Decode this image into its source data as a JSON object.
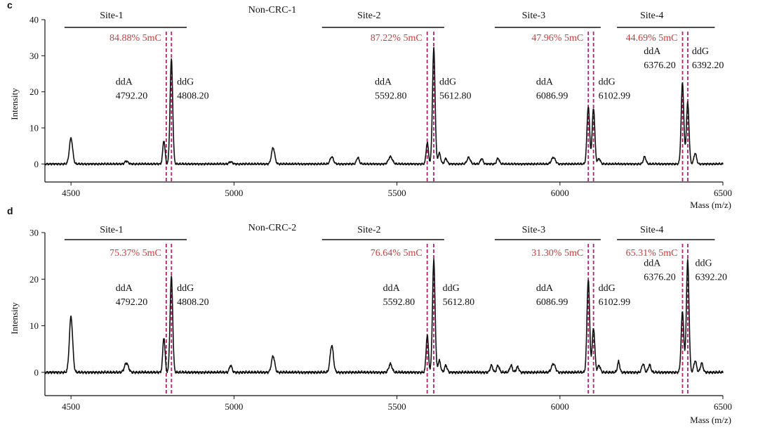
{
  "chart_data": [
    {
      "panel": "c",
      "type": "line",
      "title": "Non-CRC-1",
      "xlabel": "Mass (m/z)",
      "ylabel": "Intensity",
      "xlim": [
        4420,
        6500
      ],
      "ylim": [
        -5,
        40
      ],
      "xticks": [
        4500,
        5000,
        5500,
        6000,
        6500
      ],
      "yticks": [
        0,
        10,
        20,
        30,
        40
      ],
      "line_color": "#111111",
      "baseline": 0,
      "peaks": [
        [
          4500,
          7.2,
          5
        ],
        [
          4670,
          0.8,
          5
        ],
        [
          4785,
          6.5,
          3.5
        ],
        [
          4808,
          29,
          4
        ],
        [
          4990,
          0.6,
          5
        ],
        [
          5120,
          4.5,
          5
        ],
        [
          5300,
          2,
          5
        ],
        [
          5380,
          1.8,
          4
        ],
        [
          5480,
          2,
          6
        ],
        [
          5593,
          6,
          3.5
        ],
        [
          5613,
          32,
          4
        ],
        [
          5630,
          3,
          4
        ],
        [
          5650,
          1.5,
          4
        ],
        [
          5720,
          1.8,
          5
        ],
        [
          5760,
          1.5,
          4
        ],
        [
          5810,
          1.6,
          4
        ],
        [
          5980,
          1.8,
          6
        ],
        [
          6087,
          16,
          4
        ],
        [
          6103,
          15.5,
          4
        ],
        [
          6120,
          1.5,
          4
        ],
        [
          6260,
          2,
          4
        ],
        [
          6376,
          22.5,
          4
        ],
        [
          6392,
          17,
          4
        ],
        [
          6415,
          3,
          4
        ]
      ],
      "sites": [
        {
          "name": "Site-1",
          "from": 4480,
          "to": 4855,
          "pct": "84.88% 5mC"
        },
        {
          "name": "Site-2",
          "from": 5270,
          "to": 5645,
          "pct": "87.22% 5mC"
        },
        {
          "name": "Site-3",
          "from": 5800,
          "to": 6125,
          "pct": "47.96% 5mC"
        },
        {
          "name": "Site-4",
          "from": 6175,
          "to": 6475,
          "pct": "44.69% 5mC"
        }
      ],
      "dashed_lines": [
        4792.2,
        4808.2,
        5592.8,
        5612.8,
        6086.99,
        6102.99,
        6376.2,
        6392.2
      ],
      "dashed_color": "#c2187a",
      "pct_color": "#cc3b3b",
      "peak_labels": [
        {
          "base": "ddA",
          "mass": "4792.20",
          "x": 4735,
          "y": 22,
          "anchor": "end"
        },
        {
          "base": "ddG",
          "mass": "4808.20",
          "x": 4825,
          "y": 22,
          "anchor": "start"
        },
        {
          "base": "ddA",
          "mass": "5592.80",
          "x": 5530,
          "y": 22,
          "anchor": "end"
        },
        {
          "base": "ddG",
          "mass": "5612.80",
          "x": 5630,
          "y": 22,
          "anchor": "start"
        },
        {
          "base": "ddA",
          "mass": "6086.99",
          "x": 6025,
          "y": 22,
          "anchor": "end"
        },
        {
          "base": "ddG",
          "mass": "6102.99",
          "x": 6118,
          "y": 22,
          "anchor": "start"
        },
        {
          "base": "ddA",
          "mass": "6376.20",
          "x": 6355,
          "y": 30.5,
          "anchor": "end"
        },
        {
          "base": "ddG",
          "mass": "6392.20",
          "x": 6405,
          "y": 30.5,
          "anchor": "start"
        }
      ]
    },
    {
      "panel": "d",
      "type": "line",
      "title": "Non-CRC-2",
      "xlabel": "Mass (m/z)",
      "ylabel": "Intensity",
      "xlim": [
        4420,
        6500
      ],
      "ylim": [
        -5,
        30
      ],
      "xticks": [
        4500,
        5000,
        5500,
        6000,
        6500
      ],
      "yticks": [
        0,
        10,
        20,
        30
      ],
      "line_color": "#111111",
      "baseline": 0,
      "peaks": [
        [
          4500,
          12,
          5
        ],
        [
          4670,
          2,
          6
        ],
        [
          4785,
          7.5,
          3.5
        ],
        [
          4808,
          20.5,
          4
        ],
        [
          4990,
          1.5,
          4
        ],
        [
          5120,
          3.5,
          5
        ],
        [
          5300,
          5.8,
          5
        ],
        [
          5480,
          1.8,
          5
        ],
        [
          5593,
          8,
          3.5
        ],
        [
          5613,
          24,
          4
        ],
        [
          5630,
          2.5,
          4
        ],
        [
          5650,
          1.5,
          4
        ],
        [
          5790,
          1.5,
          4
        ],
        [
          5810,
          1.5,
          4
        ],
        [
          5850,
          1.5,
          4
        ],
        [
          5870,
          1.2,
          4
        ],
        [
          5980,
          1.8,
          6
        ],
        [
          6087,
          20,
          4
        ],
        [
          6103,
          9.5,
          4
        ],
        [
          6120,
          1.5,
          4
        ],
        [
          6180,
          2.3,
          3.5
        ],
        [
          6255,
          1.8,
          4
        ],
        [
          6275,
          1.6,
          4
        ],
        [
          6376,
          13,
          4
        ],
        [
          6392,
          24,
          4
        ],
        [
          6415,
          2.5,
          4
        ],
        [
          6435,
          2,
          4
        ]
      ],
      "sites": [
        {
          "name": "Site-1",
          "from": 4480,
          "to": 4855,
          "pct": "75.37% 5mC"
        },
        {
          "name": "Site-2",
          "from": 5270,
          "to": 5645,
          "pct": "76.64% 5mC"
        },
        {
          "name": "Site-3",
          "from": 5800,
          "to": 6125,
          "pct": "31.30% 5mC"
        },
        {
          "name": "Site-4",
          "from": 6175,
          "to": 6475,
          "pct": "65.31% 5mC"
        }
      ],
      "dashed_lines": [
        4792.2,
        4808.2,
        5592.8,
        5612.8,
        6086.99,
        6102.99,
        6376.2,
        6392.2
      ],
      "dashed_color": "#c2187a",
      "pct_color": "#cc3b3b",
      "peak_labels": [
        {
          "base": "ddA",
          "mass": "4792.20",
          "x": 4735,
          "y": 17.5,
          "anchor": "end"
        },
        {
          "base": "ddG",
          "mass": "4808.20",
          "x": 4825,
          "y": 17.5,
          "anchor": "start"
        },
        {
          "base": "ddA",
          "mass": "5592.80",
          "x": 5555,
          "y": 17.5,
          "anchor": "end"
        },
        {
          "base": "ddG",
          "mass": "5612.80",
          "x": 5640,
          "y": 17.5,
          "anchor": "start"
        },
        {
          "base": "ddA",
          "mass": "6086.99",
          "x": 6025,
          "y": 17.5,
          "anchor": "end"
        },
        {
          "base": "ddG",
          "mass": "6102.99",
          "x": 6118,
          "y": 17.5,
          "anchor": "start"
        },
        {
          "base": "ddA",
          "mass": "6376.20",
          "x": 6355,
          "y": 22.8,
          "anchor": "end"
        },
        {
          "base": "ddG",
          "mass": "6392.20",
          "x": 6415,
          "y": 22.8,
          "anchor": "start"
        }
      ]
    }
  ]
}
